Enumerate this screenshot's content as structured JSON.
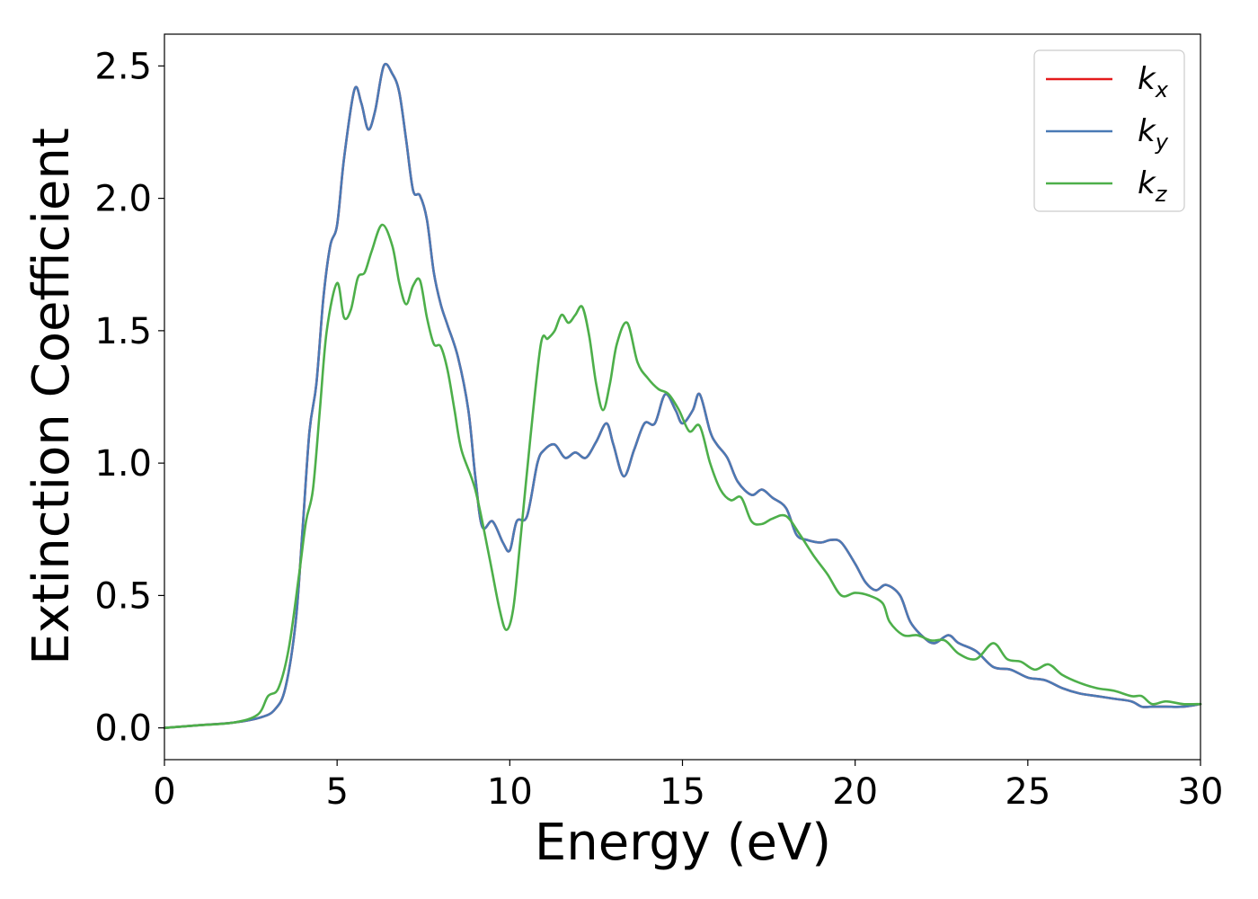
{
  "chart_data": {
    "type": "line",
    "title": "",
    "xlabel": "Energy (eV)",
    "ylabel": "Extinction Coefficient",
    "xlim": [
      0,
      30
    ],
    "ylim": [
      -0.12,
      2.62
    ],
    "xticks": [
      0,
      5,
      10,
      15,
      20,
      25,
      30
    ],
    "xtick_labels": [
      "0",
      "5",
      "10",
      "15",
      "20",
      "25",
      "30"
    ],
    "yticks": [
      0.0,
      0.5,
      1.0,
      1.5,
      2.0,
      2.5
    ],
    "ytick_labels": [
      "0.0",
      "0.5",
      "1.0",
      "1.5",
      "2.0",
      "2.5"
    ],
    "grid": false,
    "legend_position": "top-right",
    "series": [
      {
        "name": "k_x",
        "legend_base": "k",
        "legend_sub": "x",
        "color": "#e41a1c",
        "x": [
          0,
          1,
          2,
          2.8,
          3.2,
          3.5,
          3.8,
          4.0,
          4.2,
          4.4,
          4.6,
          4.8,
          5.0,
          5.2,
          5.5,
          5.7,
          5.9,
          6.1,
          6.35,
          6.6,
          6.8,
          7.0,
          7.2,
          7.4,
          7.6,
          7.8,
          8.0,
          8.2,
          8.5,
          8.8,
          9.0,
          9.2,
          9.5,
          9.8,
          10.0,
          10.2,
          10.5,
          10.8,
          11.0,
          11.3,
          11.6,
          11.9,
          12.2,
          12.5,
          12.8,
          13.0,
          13.3,
          13.6,
          13.9,
          14.2,
          14.5,
          14.8,
          15.0,
          15.3,
          15.5,
          15.8,
          16.0,
          16.3,
          16.6,
          17.0,
          17.3,
          17.6,
          18.0,
          18.3,
          18.6,
          19.0,
          19.3,
          19.6,
          20.0,
          20.3,
          20.6,
          20.9,
          21.3,
          21.6,
          22.0,
          22.3,
          22.7,
          23.0,
          23.5,
          24.0,
          24.5,
          25.0,
          25.5,
          26.0,
          26.5,
          27.0,
          27.5,
          28.0,
          28.3,
          28.6,
          29.0,
          29.5,
          30.0
        ],
        "values": [
          0.0,
          0.01,
          0.02,
          0.04,
          0.07,
          0.15,
          0.4,
          0.75,
          1.12,
          1.3,
          1.62,
          1.82,
          1.9,
          2.15,
          2.41,
          2.36,
          2.26,
          2.33,
          2.5,
          2.47,
          2.4,
          2.22,
          2.03,
          2.01,
          1.92,
          1.72,
          1.6,
          1.52,
          1.4,
          1.2,
          0.95,
          0.76,
          0.78,
          0.7,
          0.67,
          0.78,
          0.8,
          1.0,
          1.05,
          1.07,
          1.02,
          1.04,
          1.02,
          1.08,
          1.15,
          1.07,
          0.95,
          1.05,
          1.15,
          1.15,
          1.26,
          1.2,
          1.15,
          1.2,
          1.26,
          1.12,
          1.07,
          1.02,
          0.93,
          0.88,
          0.9,
          0.87,
          0.83,
          0.73,
          0.71,
          0.7,
          0.71,
          0.7,
          0.62,
          0.55,
          0.52,
          0.54,
          0.5,
          0.4,
          0.34,
          0.32,
          0.35,
          0.32,
          0.29,
          0.23,
          0.22,
          0.19,
          0.18,
          0.15,
          0.13,
          0.12,
          0.11,
          0.1,
          0.08,
          0.08,
          0.08,
          0.08,
          0.09
        ]
      },
      {
        "name": "k_y",
        "legend_base": "k",
        "legend_sub": "y",
        "color": "#4a7ab5",
        "x": [
          0,
          1,
          2,
          2.8,
          3.2,
          3.5,
          3.8,
          4.0,
          4.2,
          4.4,
          4.6,
          4.8,
          5.0,
          5.2,
          5.5,
          5.7,
          5.9,
          6.1,
          6.35,
          6.6,
          6.8,
          7.0,
          7.2,
          7.4,
          7.6,
          7.8,
          8.0,
          8.2,
          8.5,
          8.8,
          9.0,
          9.2,
          9.5,
          9.8,
          10.0,
          10.2,
          10.5,
          10.8,
          11.0,
          11.3,
          11.6,
          11.9,
          12.2,
          12.5,
          12.8,
          13.0,
          13.3,
          13.6,
          13.9,
          14.2,
          14.5,
          14.8,
          15.0,
          15.3,
          15.5,
          15.8,
          16.0,
          16.3,
          16.6,
          17.0,
          17.3,
          17.6,
          18.0,
          18.3,
          18.6,
          19.0,
          19.3,
          19.6,
          20.0,
          20.3,
          20.6,
          20.9,
          21.3,
          21.6,
          22.0,
          22.3,
          22.7,
          23.0,
          23.5,
          24.0,
          24.5,
          25.0,
          25.5,
          26.0,
          26.5,
          27.0,
          27.5,
          28.0,
          28.3,
          28.6,
          29.0,
          29.5,
          30.0
        ],
        "values": [
          0.0,
          0.01,
          0.02,
          0.04,
          0.07,
          0.15,
          0.4,
          0.75,
          1.12,
          1.3,
          1.62,
          1.82,
          1.9,
          2.15,
          2.41,
          2.36,
          2.26,
          2.33,
          2.5,
          2.47,
          2.4,
          2.22,
          2.03,
          2.01,
          1.92,
          1.72,
          1.6,
          1.52,
          1.4,
          1.2,
          0.95,
          0.76,
          0.78,
          0.7,
          0.67,
          0.78,
          0.8,
          1.0,
          1.05,
          1.07,
          1.02,
          1.04,
          1.02,
          1.08,
          1.15,
          1.07,
          0.95,
          1.05,
          1.15,
          1.15,
          1.26,
          1.2,
          1.15,
          1.2,
          1.26,
          1.12,
          1.07,
          1.02,
          0.93,
          0.88,
          0.9,
          0.87,
          0.83,
          0.73,
          0.71,
          0.7,
          0.71,
          0.7,
          0.62,
          0.55,
          0.52,
          0.54,
          0.5,
          0.4,
          0.34,
          0.32,
          0.35,
          0.32,
          0.29,
          0.23,
          0.22,
          0.19,
          0.18,
          0.15,
          0.13,
          0.12,
          0.11,
          0.1,
          0.08,
          0.08,
          0.08,
          0.08,
          0.09
        ]
      },
      {
        "name": "k_z",
        "legend_base": "k",
        "legend_sub": "z",
        "color": "#4daf4a",
        "x": [
          0,
          1,
          2,
          2.7,
          3.0,
          3.3,
          3.6,
          3.9,
          4.1,
          4.3,
          4.5,
          4.7,
          5.0,
          5.2,
          5.4,
          5.6,
          5.8,
          6.0,
          6.3,
          6.6,
          6.8,
          7.0,
          7.2,
          7.4,
          7.6,
          7.8,
          8.0,
          8.2,
          8.4,
          8.6,
          9.0,
          9.4,
          9.7,
          9.9,
          10.1,
          10.3,
          10.6,
          10.9,
          11.1,
          11.3,
          11.5,
          11.7,
          11.9,
          12.1,
          12.3,
          12.5,
          12.7,
          12.9,
          13.1,
          13.4,
          13.7,
          14.0,
          14.3,
          14.6,
          14.9,
          15.2,
          15.5,
          15.8,
          16.1,
          16.4,
          16.7,
          17.0,
          17.3,
          17.6,
          18.0,
          18.4,
          18.8,
          19.2,
          19.6,
          20.0,
          20.4,
          20.8,
          21.0,
          21.4,
          21.8,
          22.2,
          22.6,
          23.0,
          23.5,
          24.0,
          24.4,
          24.8,
          25.2,
          25.6,
          26.0,
          26.5,
          27.0,
          27.5,
          28.0,
          28.3,
          28.6,
          29.0,
          29.5,
          30.0
        ],
        "values": [
          0.0,
          0.01,
          0.02,
          0.05,
          0.12,
          0.15,
          0.3,
          0.58,
          0.78,
          0.9,
          1.2,
          1.5,
          1.68,
          1.55,
          1.58,
          1.7,
          1.72,
          1.8,
          1.9,
          1.82,
          1.68,
          1.6,
          1.67,
          1.69,
          1.55,
          1.45,
          1.44,
          1.35,
          1.2,
          1.05,
          0.9,
          0.65,
          0.45,
          0.37,
          0.45,
          0.7,
          1.1,
          1.45,
          1.47,
          1.5,
          1.56,
          1.53,
          1.56,
          1.59,
          1.48,
          1.3,
          1.2,
          1.3,
          1.45,
          1.53,
          1.38,
          1.32,
          1.28,
          1.26,
          1.2,
          1.12,
          1.14,
          1.0,
          0.9,
          0.86,
          0.87,
          0.78,
          0.77,
          0.79,
          0.8,
          0.73,
          0.65,
          0.58,
          0.5,
          0.51,
          0.5,
          0.47,
          0.4,
          0.35,
          0.35,
          0.33,
          0.33,
          0.28,
          0.26,
          0.32,
          0.26,
          0.25,
          0.22,
          0.24,
          0.2,
          0.17,
          0.15,
          0.14,
          0.12,
          0.12,
          0.09,
          0.1,
          0.09,
          0.09
        ]
      }
    ]
  }
}
